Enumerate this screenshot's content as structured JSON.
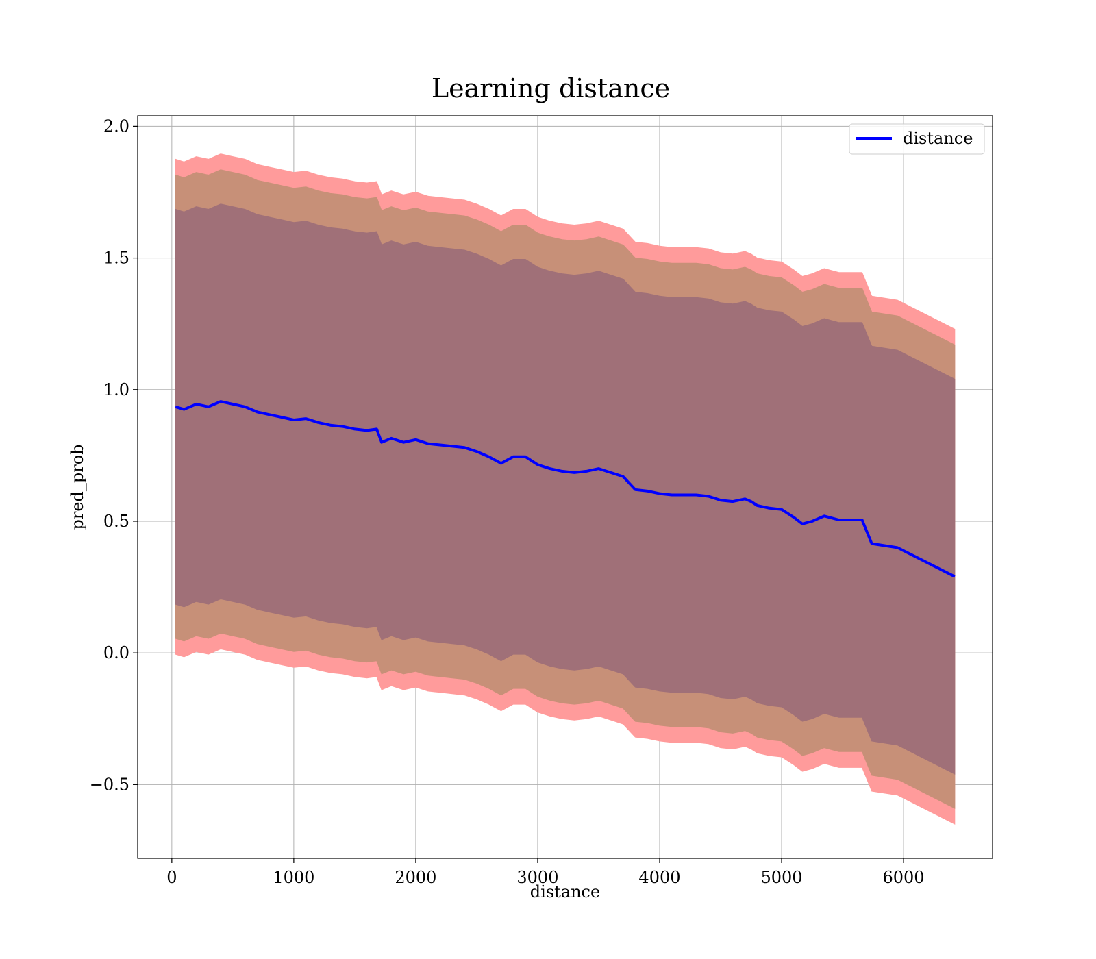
{
  "chart_data": {
    "type": "line",
    "title": "Learning distance",
    "xlabel": "distance",
    "ylabel": "pred_prob",
    "xlim": [
      -280,
      6730
    ],
    "ylim": [
      -0.78,
      2.04
    ],
    "xticks": [
      0,
      1000,
      2000,
      3000,
      4000,
      5000,
      6000
    ],
    "yticks": [
      -0.5,
      0.0,
      0.5,
      1.0,
      1.5,
      2.0
    ],
    "ytick_labels": [
      "−0.5",
      "0.0",
      "0.5",
      "1.0",
      "1.5",
      "2.0"
    ],
    "grid": true,
    "legend": {
      "position": "top-right",
      "entries": [
        "distance"
      ]
    },
    "colors": {
      "line": "#0000ff",
      "band_outer": "#ff9b9b",
      "band_middle": "#c79078",
      "band_inner": "#a07078",
      "grid": "#b0b0b0"
    },
    "x": [
      30,
      100,
      200,
      300,
      400,
      500,
      600,
      700,
      800,
      900,
      1000,
      1100,
      1200,
      1300,
      1400,
      1500,
      1600,
      1680,
      1720,
      1800,
      1900,
      2000,
      2100,
      2200,
      2300,
      2400,
      2500,
      2600,
      2700,
      2800,
      2900,
      3000,
      3100,
      3200,
      3300,
      3400,
      3500,
      3600,
      3700,
      3800,
      3900,
      4000,
      4100,
      4200,
      4300,
      4400,
      4500,
      4600,
      4700,
      4750,
      4800,
      4900,
      5000,
      5100,
      5170,
      5250,
      5350,
      5470,
      5660,
      5740,
      5950,
      6420
    ],
    "series": [
      {
        "name": "distance",
        "values": [
          0.935,
          0.925,
          0.945,
          0.935,
          0.955,
          0.945,
          0.935,
          0.915,
          0.905,
          0.895,
          0.885,
          0.89,
          0.875,
          0.865,
          0.86,
          0.85,
          0.845,
          0.85,
          0.8,
          0.815,
          0.8,
          0.81,
          0.795,
          0.79,
          0.785,
          0.78,
          0.765,
          0.745,
          0.72,
          0.745,
          0.745,
          0.715,
          0.7,
          0.69,
          0.685,
          0.69,
          0.7,
          0.685,
          0.67,
          0.62,
          0.615,
          0.605,
          0.6,
          0.6,
          0.6,
          0.595,
          0.58,
          0.575,
          0.585,
          0.575,
          0.56,
          0.55,
          0.545,
          0.515,
          0.49,
          0.5,
          0.52,
          0.505,
          0.505,
          0.415,
          0.4,
          0.29
        ]
      }
    ],
    "bands": [
      {
        "level": "outer",
        "half_width": [
          0.94,
          0.94,
          0.94,
          0.94,
          0.94,
          0.94,
          0.94,
          0.94,
          0.94,
          0.94,
          0.94,
          0.94,
          0.94,
          0.94,
          0.94,
          0.94,
          0.94,
          0.94,
          0.94,
          0.94,
          0.94,
          0.94,
          0.94,
          0.94,
          0.94,
          0.94,
          0.94,
          0.94,
          0.94,
          0.94,
          0.94,
          0.94,
          0.94,
          0.94,
          0.94,
          0.94,
          0.94,
          0.94,
          0.94,
          0.94,
          0.94,
          0.94,
          0.94,
          0.94,
          0.94,
          0.94,
          0.94,
          0.94,
          0.94,
          0.94,
          0.94,
          0.94,
          0.94,
          0.94,
          0.94,
          0.94,
          0.94,
          0.94,
          0.94,
          0.94,
          0.94,
          0.94
        ]
      },
      {
        "level": "middle",
        "half_width": 0.88
      },
      {
        "level": "inner",
        "half_width": 0.75
      }
    ]
  }
}
